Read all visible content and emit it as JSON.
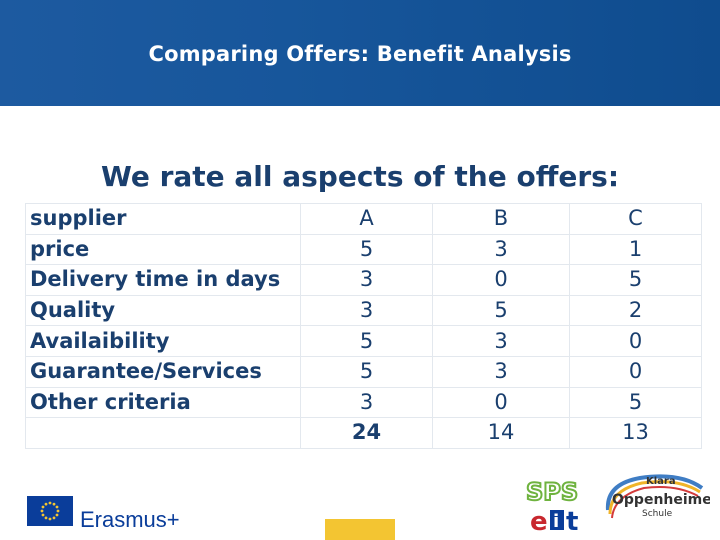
{
  "header": {
    "title": "Comparing Offers: Benefit Analysis"
  },
  "subtitle": "We rate all aspects of the offers:",
  "table": {
    "columns": [
      "A",
      "B",
      "C"
    ],
    "rows": [
      {
        "label": "supplier",
        "values": [
          "A",
          "B",
          "C"
        ]
      },
      {
        "label": "price",
        "values": [
          "5",
          "3",
          "1"
        ]
      },
      {
        "label": "Delivery time in days",
        "values": [
          "3",
          "0",
          "5"
        ]
      },
      {
        "label": "Quality",
        "values": [
          "3",
          "5",
          "2"
        ]
      },
      {
        "label": "Availaibility",
        "values": [
          "5",
          "3",
          "0"
        ]
      },
      {
        "label": "Guarantee/Services",
        "values": [
          "5",
          "3",
          "0"
        ]
      },
      {
        "label": "Other criteria",
        "values": [
          "3",
          "0",
          "5"
        ]
      }
    ],
    "totals": [
      "24",
      "14",
      "13"
    ]
  },
  "footer": {
    "erasmus_label": "Erasmus+",
    "sps_logo_text": "SPS eit",
    "school_logo_text": {
      "line1": "Klara",
      "line2": "Oppenheimer",
      "line3": "Schule"
    }
  },
  "colors": {
    "header_bg": "#17569b",
    "text_dark_blue": "#1a3f6e",
    "eu_blue": "#0a3d9a",
    "eu_yellow": "#f3c532"
  }
}
